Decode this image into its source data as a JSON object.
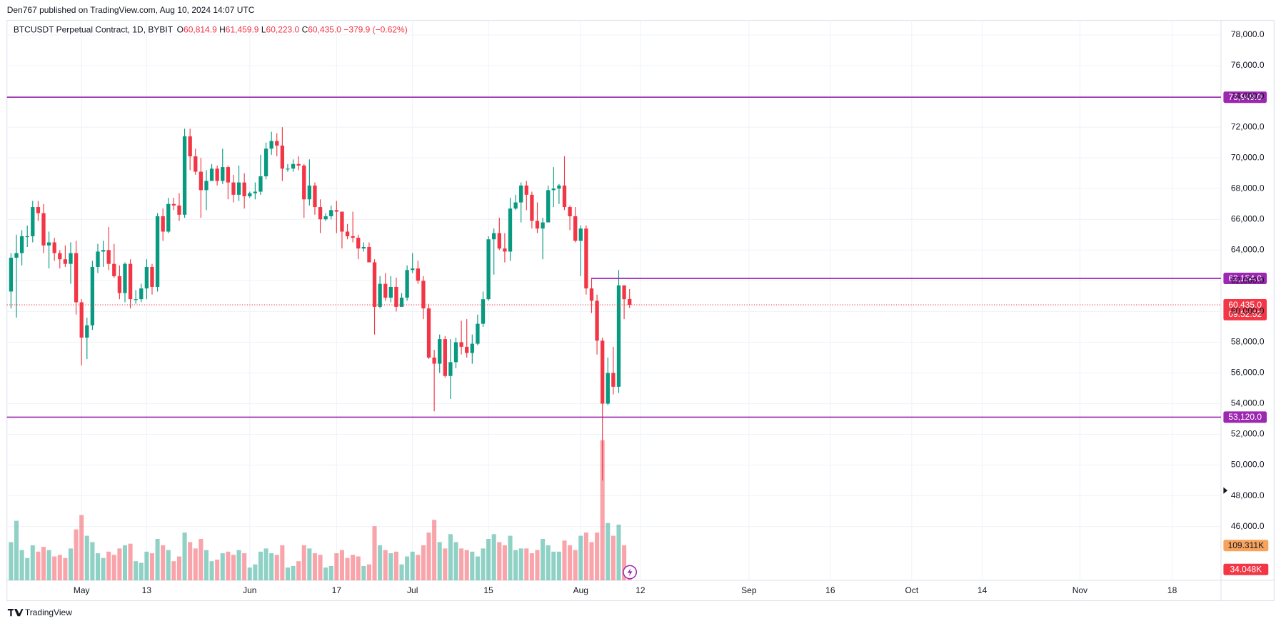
{
  "header": {
    "attribution": "Den767 published on TradingView.com, Aug 10, 2024 14:07 UTC",
    "brand": "TradingView"
  },
  "chart_data": {
    "type": "candlestick",
    "legend": {
      "symbol": "BTCUSDT Perpetual Contract, 1D, BYBIT",
      "fields": [
        {
          "key": "O",
          "value": "60,814.9"
        },
        {
          "key": "H",
          "value": "61,459.9"
        },
        {
          "key": "L",
          "value": "60,223.0"
        },
        {
          "key": "C",
          "value": "60,435.0"
        }
      ],
      "change": "−379.9 (−0.62%)"
    },
    "up_color": "#089981",
    "down_color": "#f23645",
    "ohlc": [
      [
        61300,
        63800,
        60200,
        63500
      ],
      [
        63500,
        65000,
        59600,
        63800
      ],
      [
        63800,
        65300,
        63000,
        64900
      ],
      [
        64900,
        65600,
        64200,
        64900
      ],
      [
        64900,
        67200,
        64500,
        66800
      ],
      [
        66800,
        67200,
        65900,
        66400
      ],
      [
        66400,
        67000,
        63800,
        64300
      ],
      [
        64300,
        65200,
        62800,
        64500
      ],
      [
        64500,
        64800,
        63300,
        63800
      ],
      [
        63800,
        64000,
        62800,
        63400
      ],
      [
        63400,
        64300,
        62900,
        63100
      ],
      [
        63100,
        64500,
        61800,
        63800
      ],
      [
        63800,
        64600,
        59800,
        60600
      ],
      [
        60600,
        60800,
        56500,
        58300
      ],
      [
        58300,
        59600,
        56900,
        59100
      ],
      [
        59100,
        63300,
        58800,
        62900
      ],
      [
        62900,
        64400,
        62500,
        63900
      ],
      [
        63900,
        64600,
        62900,
        64000
      ],
      [
        64000,
        65500,
        62700,
        63100
      ],
      [
        63100,
        64400,
        62200,
        62300
      ],
      [
        62300,
        63000,
        60800,
        61200
      ],
      [
        61200,
        63200,
        60600,
        63100
      ],
      [
        63100,
        63400,
        60200,
        60800
      ],
      [
        60800,
        61400,
        60500,
        60800
      ],
      [
        60800,
        61800,
        60600,
        61500
      ],
      [
        61500,
        63400,
        60800,
        62900
      ],
      [
        62900,
        63100,
        61100,
        61600
      ],
      [
        61600,
        66400,
        61300,
        66200
      ],
      [
        66200,
        66700,
        64600,
        65200
      ],
      [
        65200,
        67400,
        65100,
        67000
      ],
      [
        67000,
        67400,
        66600,
        66900
      ],
      [
        66900,
        67700,
        65900,
        66300
      ],
      [
        66300,
        71900,
        66100,
        71400
      ],
      [
        71400,
        71900,
        69200,
        70100
      ],
      [
        70100,
        70600,
        68900,
        69100
      ],
      [
        69100,
        70000,
        66100,
        67900
      ],
      [
        67900,
        69200,
        66600,
        68500
      ],
      [
        68500,
        69600,
        68500,
        69300
      ],
      [
        69300,
        69500,
        68200,
        68500
      ],
      [
        68500,
        70600,
        68300,
        69400
      ],
      [
        69400,
        69500,
        67300,
        68400
      ],
      [
        68400,
        68900,
        67100,
        67600
      ],
      [
        67600,
        69500,
        67200,
        68400
      ],
      [
        68400,
        69000,
        66700,
        67500
      ],
      [
        67500,
        67800,
        67400,
        67700
      ],
      [
        67700,
        68400,
        67300,
        67800
      ],
      [
        67800,
        70200,
        67600,
        68800
      ],
      [
        68800,
        71000,
        68600,
        70600
      ],
      [
        70600,
        71700,
        70200,
        71100
      ],
      [
        71100,
        71600,
        70100,
        70800
      ],
      [
        70800,
        72000,
        68500,
        69300
      ],
      [
        69300,
        69600,
        69100,
        69300
      ],
      [
        69300,
        69900,
        69100,
        69600
      ],
      [
        69600,
        70100,
        69200,
        69500
      ],
      [
        69500,
        69600,
        66100,
        67300
      ],
      [
        67300,
        69900,
        66900,
        68200
      ],
      [
        68200,
        68400,
        66300,
        66800
      ],
      [
        66800,
        67300,
        65100,
        66000
      ],
      [
        66000,
        66400,
        65900,
        66200
      ],
      [
        66200,
        66900,
        66000,
        66600
      ],
      [
        66600,
        67200,
        65100,
        66500
      ],
      [
        66500,
        66500,
        64100,
        65200
      ],
      [
        65200,
        65700,
        64700,
        64900
      ],
      [
        64900,
        66500,
        64500,
        64800
      ],
      [
        64800,
        65000,
        63400,
        64100
      ],
      [
        64100,
        64500,
        63900,
        64200
      ],
      [
        64200,
        64500,
        63200,
        63200
      ],
      [
        63200,
        63400,
        58500,
        60300
      ],
      [
        60300,
        62300,
        60200,
        61800
      ],
      [
        61800,
        62500,
        60700,
        60900
      ],
      [
        60900,
        62300,
        60600,
        61600
      ],
      [
        61600,
        62200,
        60000,
        60300
      ],
      [
        60300,
        61200,
        60300,
        60900
      ],
      [
        60900,
        63000,
        60700,
        62700
      ],
      [
        62700,
        63800,
        62500,
        62800
      ],
      [
        62800,
        63300,
        61800,
        62000
      ],
      [
        62000,
        62300,
        59500,
        60200
      ],
      [
        60200,
        60500,
        56900,
        57000
      ],
      [
        57000,
        57500,
        53500,
        56600
      ],
      [
        56600,
        58500,
        56000,
        58200
      ],
      [
        58200,
        58400,
        55700,
        55800
      ],
      [
        55800,
        58200,
        54300,
        56700
      ],
      [
        56700,
        58300,
        56300,
        58000
      ],
      [
        58000,
        59400,
        57200,
        57700
      ],
      [
        57700,
        59500,
        57000,
        57300
      ],
      [
        57300,
        58500,
        56600,
        57900
      ],
      [
        57900,
        59800,
        57800,
        59200
      ],
      [
        59200,
        61300,
        59000,
        60800
      ],
      [
        60800,
        64900,
        60700,
        64700
      ],
      [
        64700,
        65400,
        62400,
        65100
      ],
      [
        65100,
        66100,
        64000,
        64100
      ],
      [
        64100,
        65100,
        63200,
        63900
      ],
      [
        63900,
        67400,
        63300,
        66700
      ],
      [
        66700,
        67600,
        66600,
        67100
      ],
      [
        67100,
        68400,
        65800,
        68200
      ],
      [
        68200,
        68500,
        66600,
        67600
      ],
      [
        67600,
        67800,
        65400,
        65900
      ],
      [
        65900,
        67100,
        65100,
        65400
      ],
      [
        65400,
        66100,
        63400,
        65800
      ],
      [
        65800,
        68200,
        65800,
        67900
      ],
      [
        67900,
        69400,
        66800,
        68000
      ],
      [
        68000,
        68300,
        67000,
        68200
      ],
      [
        68200,
        70100,
        66600,
        66800
      ],
      [
        66800,
        66900,
        65300,
        66200
      ],
      [
        66200,
        66800,
        64500,
        64600
      ],
      [
        64600,
        65600,
        62300,
        65400
      ],
      [
        65400,
        65600,
        61100,
        61500
      ],
      [
        61500,
        62200,
        59900,
        60700
      ],
      [
        60700,
        61100,
        57200,
        58100
      ],
      [
        58100,
        58300,
        49000,
        54000
      ],
      [
        54000,
        57000,
        53900,
        56000
      ],
      [
        56000,
        57700,
        54600,
        55100
      ],
      [
        55100,
        62700,
        54700,
        61700
      ],
      [
        61700,
        61700,
        59500,
        60800
      ],
      [
        60814.9,
        61459.9,
        60223.0,
        60435.0
      ]
    ],
    "volume": [
      120,
      187,
      95,
      70,
      110,
      90,
      105,
      95,
      75,
      80,
      70,
      100,
      160,
      205,
      140,
      120,
      85,
      70,
      90,
      80,
      100,
      110,
      115,
      60,
      55,
      90,
      85,
      130,
      110,
      95,
      60,
      75,
      150,
      120,
      100,
      130,
      95,
      60,
      65,
      85,
      90,
      80,
      95,
      85,
      40,
      50,
      90,
      100,
      85,
      80,
      110,
      40,
      45,
      60,
      110,
      100,
      85,
      80,
      40,
      45,
      85,
      95,
      70,
      80,
      75,
      45,
      50,
      170,
      110,
      95,
      85,
      90,
      50,
      75,
      90,
      80,
      110,
      150,
      190,
      120,
      100,
      145,
      120,
      100,
      95,
      90,
      75,
      100,
      130,
      145,
      120,
      110,
      140,
      95,
      100,
      100,
      85,
      95,
      130,
      110,
      90,
      90,
      125,
      110,
      95,
      140,
      150,
      120,
      150,
      440,
      180,
      140,
      175,
      110,
      34.048
    ],
    "volume_labels": [
      {
        "value": 109.311,
        "label": "109.311K",
        "color": "#f7a35c"
      },
      {
        "value": 34.048,
        "label": "34.048K",
        "color": "#f23645"
      }
    ],
    "xlim": [
      -0.75,
      223
    ],
    "xticks": [
      {
        "value": 13,
        "label": "May"
      },
      {
        "value": 25,
        "label": "13"
      },
      {
        "value": 44,
        "label": "Jun"
      },
      {
        "value": 60,
        "label": "17"
      },
      {
        "value": 74,
        "label": "Jul"
      },
      {
        "value": 88,
        "label": "15"
      },
      {
        "value": 105,
        "label": "Aug"
      },
      {
        "value": 116,
        "label": "12"
      },
      {
        "value": 136,
        "label": "Sep"
      },
      {
        "value": 151,
        "label": "16"
      },
      {
        "value": 166,
        "label": "Oct"
      },
      {
        "value": 179,
        "label": "14"
      },
      {
        "value": 197,
        "label": "Nov"
      },
      {
        "value": 214,
        "label": "18"
      }
    ],
    "ylim": [
      42500,
      78950
    ],
    "yticks": [
      {
        "value": 46000,
        "label": "46,000.0"
      },
      {
        "value": 48000,
        "label": "48,000.0"
      },
      {
        "value": 50000,
        "label": "50,000.0"
      },
      {
        "value": 52000,
        "label": "52,000.0"
      },
      {
        "value": 54000,
        "label": "54,000.0"
      },
      {
        "value": 56000,
        "label": "56,000.0"
      },
      {
        "value": 58000,
        "label": "58,000.0"
      },
      {
        "value": 60000,
        "label": "60,000.0"
      },
      {
        "value": 62000,
        "label": "62,000.0"
      },
      {
        "value": 64000,
        "label": "64,000.0"
      },
      {
        "value": 66000,
        "label": "66,000.0"
      },
      {
        "value": 68000,
        "label": "68,000.0"
      },
      {
        "value": 70000,
        "label": "70,000.0"
      },
      {
        "value": 72000,
        "label": "72,000.0"
      },
      {
        "value": 74000,
        "label": "74,000.0"
      },
      {
        "value": 76000,
        "label": "76,000.0"
      },
      {
        "value": 78000,
        "label": "78,000.0"
      }
    ],
    "grid": true,
    "hlines": [
      {
        "value": 73949,
        "label": "73,949.0",
        "color": "#9c27b0"
      },
      {
        "value": 62154,
        "label": "62,154.0",
        "color": "#9c27b0",
        "from": 107
      },
      {
        "value": 53120,
        "label": "53,120.0",
        "color": "#9c27b0"
      }
    ],
    "last_price": {
      "value": 60435,
      "label": "60,435.0",
      "countdown": "09:52:52",
      "color": "#f23645"
    }
  }
}
